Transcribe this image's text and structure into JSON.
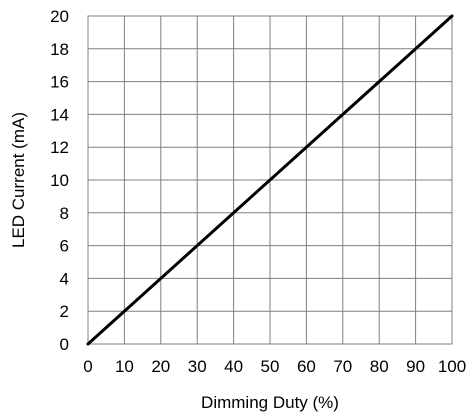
{
  "chart_data": {
    "type": "line",
    "xlabel": "Dimming Duty (%)",
    "ylabel": "LED Current (mA)",
    "xlim": [
      0,
      100
    ],
    "ylim": [
      0,
      20
    ],
    "xticks": [
      "0",
      "10",
      "20",
      "30",
      "40",
      "50",
      "60",
      "70",
      "80",
      "90",
      "100"
    ],
    "yticks": [
      "0",
      "2",
      "4",
      "6",
      "8",
      "10",
      "12",
      "14",
      "16",
      "18",
      "20"
    ],
    "grid": true,
    "series": [
      {
        "x": [
          0,
          100
        ],
        "y": [
          0,
          20
        ],
        "color": "#000000"
      }
    ]
  }
}
